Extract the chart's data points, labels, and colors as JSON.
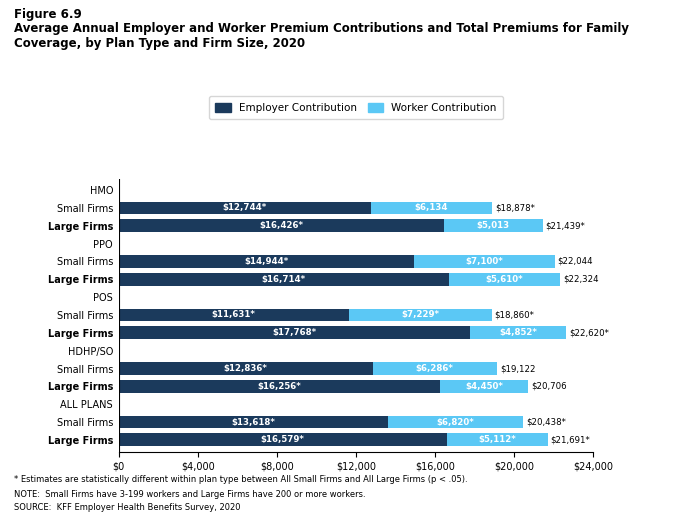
{
  "title_line1": "Figure 6.9",
  "title_line2": "Average Annual Employer and Worker Premium Contributions and Total Premiums for Family\nCoverage, by Plan Type and Firm Size, 2020",
  "employer_color": "#1b3a5c",
  "worker_color": "#5bc8f5",
  "categories": [
    "HMO",
    "Small Firms",
    "Large Firms",
    "PPO",
    "Small Firms_1",
    "Large Firms_1",
    "POS",
    "Small Firms_2",
    "Large Firms_2",
    "HDHP/SO",
    "Small Firms_3",
    "Large Firms_3",
    "ALL PLANS",
    "Small Firms_4",
    "Large Firms_4"
  ],
  "display_labels": [
    "HMO",
    "Small Firms",
    "Large Firms",
    "PPO",
    "Small Firms",
    "Large Firms",
    "POS",
    "Small Firms",
    "Large Firms",
    "HDHP/SO",
    "Small Firms",
    "Large Firms",
    "ALL PLANS",
    "Small Firms",
    "Large Firms"
  ],
  "employer_values": [
    0,
    12744,
    16426,
    0,
    14944,
    16714,
    0,
    11631,
    17768,
    0,
    12836,
    16256,
    0,
    13618,
    16579
  ],
  "worker_values": [
    0,
    6134,
    5013,
    0,
    7100,
    5610,
    0,
    7229,
    4852,
    0,
    6286,
    4450,
    0,
    6820,
    5112
  ],
  "employer_labels": [
    "",
    "$12,744*",
    "$16,426*",
    "",
    "$14,944*",
    "$16,714*",
    "",
    "$11,631*",
    "$17,768*",
    "",
    "$12,836*",
    "$16,256*",
    "",
    "$13,618*",
    "$16,579*"
  ],
  "worker_labels": [
    "",
    "$6,134",
    "$5,013",
    "",
    "$7,100*",
    "$5,610*",
    "",
    "$7,229*",
    "$4,852*",
    "",
    "$6,286*",
    "$4,450*",
    "",
    "$6,820*",
    "$5,112*"
  ],
  "total_labels": [
    "",
    "$18,878*",
    "$21,439*",
    "",
    "$22,044",
    "$22,324",
    "",
    "$18,860*",
    "$22,620*",
    "",
    "$19,122",
    "$20,706",
    "",
    "$20,438*",
    "$21,691*"
  ],
  "header_indices": [
    0,
    3,
    6,
    9,
    12
  ],
  "xlim": [
    0,
    24000
  ],
  "xticks": [
    0,
    4000,
    8000,
    12000,
    16000,
    20000,
    24000
  ],
  "footnote1": "* Estimates are statistically different within plan type between All Small Firms and All Large Firms (p < .05).",
  "footnote2": "NOTE:  Small Firms have 3-199 workers and Large Firms have 200 or more workers.",
  "footnote3": "SOURCE:  KFF Employer Health Benefits Survey, 2020",
  "bar_height": 0.72,
  "figsize": [
    6.98,
    5.25
  ],
  "dpi": 100
}
